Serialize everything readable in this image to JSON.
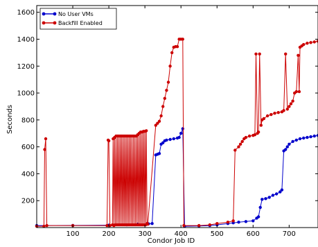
{
  "chart_data": {
    "type": "line",
    "title": "",
    "xlabel": "Condor Job ID",
    "ylabel": "Seconds",
    "xlim": [
      0,
      780
    ],
    "ylim": [
      0,
      1650
    ],
    "x_ticks": [
      100,
      200,
      300,
      400,
      500,
      600,
      700
    ],
    "y_ticks": [
      200,
      400,
      600,
      800,
      1000,
      1200,
      1400,
      1600
    ],
    "grid": false,
    "legend_position": "top-left",
    "series": [
      {
        "name": "No User VMs",
        "color": "#0000cc",
        "points": [
          [
            0,
            15
          ],
          [
            100,
            16
          ],
          [
            200,
            18
          ],
          [
            250,
            20
          ],
          [
            280,
            25
          ],
          [
            310,
            28
          ],
          [
            320,
            30
          ],
          [
            330,
            540
          ],
          [
            335,
            545
          ],
          [
            340,
            550
          ],
          [
            345,
            620
          ],
          [
            350,
            630
          ],
          [
            355,
            645
          ],
          [
            360,
            650
          ],
          [
            370,
            655
          ],
          [
            380,
            660
          ],
          [
            390,
            665
          ],
          [
            395,
            670
          ],
          [
            400,
            700
          ],
          [
            405,
            735
          ],
          [
            410,
            10
          ],
          [
            450,
            12
          ],
          [
            480,
            15
          ],
          [
            500,
            20
          ],
          [
            530,
            30
          ],
          [
            545,
            35
          ],
          [
            560,
            40
          ],
          [
            580,
            45
          ],
          [
            600,
            50
          ],
          [
            610,
            70
          ],
          [
            615,
            80
          ],
          [
            620,
            150
          ],
          [
            625,
            210
          ],
          [
            635,
            215
          ],
          [
            645,
            225
          ],
          [
            655,
            240
          ],
          [
            665,
            250
          ],
          [
            675,
            265
          ],
          [
            680,
            280
          ],
          [
            685,
            570
          ],
          [
            690,
            580
          ],
          [
            695,
            600
          ],
          [
            700,
            620
          ],
          [
            710,
            640
          ],
          [
            720,
            650
          ],
          [
            730,
            660
          ],
          [
            740,
            665
          ],
          [
            750,
            670
          ],
          [
            760,
            675
          ],
          [
            770,
            680
          ],
          [
            780,
            685
          ]
        ]
      },
      {
        "name": "Backfill Enabled",
        "color": "#cc0000",
        "points": [
          [
            0,
            10
          ],
          [
            20,
            10
          ],
          [
            22,
            580
          ],
          [
            25,
            660
          ],
          [
            28,
            15
          ],
          [
            100,
            15
          ],
          [
            195,
            15
          ],
          [
            198,
            650
          ],
          [
            200,
            645
          ],
          [
            203,
            15
          ],
          [
            210,
            20
          ],
          [
            212,
            660
          ],
          [
            214,
            15
          ],
          [
            216,
            670
          ],
          [
            218,
            20
          ],
          [
            220,
            680
          ],
          [
            222,
            20
          ],
          [
            224,
            680
          ],
          [
            226,
            20
          ],
          [
            228,
            680
          ],
          [
            230,
            20
          ],
          [
            232,
            680
          ],
          [
            234,
            20
          ],
          [
            236,
            680
          ],
          [
            238,
            20
          ],
          [
            240,
            680
          ],
          [
            242,
            20
          ],
          [
            244,
            680
          ],
          [
            246,
            20
          ],
          [
            248,
            680
          ],
          [
            250,
            20
          ],
          [
            252,
            680
          ],
          [
            254,
            20
          ],
          [
            256,
            680
          ],
          [
            258,
            20
          ],
          [
            260,
            680
          ],
          [
            262,
            20
          ],
          [
            264,
            680
          ],
          [
            266,
            20
          ],
          [
            268,
            680
          ],
          [
            270,
            20
          ],
          [
            272,
            680
          ],
          [
            274,
            20
          ],
          [
            276,
            680
          ],
          [
            278,
            20
          ],
          [
            280,
            690
          ],
          [
            282,
            20
          ],
          [
            284,
            700
          ],
          [
            286,
            20
          ],
          [
            288,
            710
          ],
          [
            290,
            20
          ],
          [
            292,
            710
          ],
          [
            294,
            20
          ],
          [
            296,
            715
          ],
          [
            298,
            20
          ],
          [
            300,
            715
          ],
          [
            302,
            20
          ],
          [
            304,
            720
          ],
          [
            306,
            30
          ],
          [
            308,
            25
          ],
          [
            330,
            760
          ],
          [
            335,
            775
          ],
          [
            340,
            790
          ],
          [
            345,
            830
          ],
          [
            350,
            900
          ],
          [
            355,
            960
          ],
          [
            360,
            1020
          ],
          [
            365,
            1080
          ],
          [
            370,
            1200
          ],
          [
            375,
            1300
          ],
          [
            380,
            1340
          ],
          [
            385,
            1345
          ],
          [
            390,
            1345
          ],
          [
            395,
            1400
          ],
          [
            400,
            1400
          ],
          [
            405,
            1400
          ],
          [
            408,
            15
          ],
          [
            450,
            15
          ],
          [
            480,
            20
          ],
          [
            500,
            30
          ],
          [
            530,
            40
          ],
          [
            545,
            50
          ],
          [
            550,
            575
          ],
          [
            560,
            600
          ],
          [
            565,
            620
          ],
          [
            570,
            640
          ],
          [
            575,
            660
          ],
          [
            580,
            670
          ],
          [
            590,
            680
          ],
          [
            600,
            685
          ],
          [
            605,
            690
          ],
          [
            608,
            1290
          ],
          [
            612,
            700
          ],
          [
            615,
            710
          ],
          [
            618,
            1290
          ],
          [
            622,
            760
          ],
          [
            625,
            800
          ],
          [
            630,
            810
          ],
          [
            640,
            830
          ],
          [
            650,
            840
          ],
          [
            660,
            850
          ],
          [
            670,
            855
          ],
          [
            680,
            860
          ],
          [
            685,
            870
          ],
          [
            690,
            1290
          ],
          [
            695,
            880
          ],
          [
            700,
            900
          ],
          [
            705,
            920
          ],
          [
            710,
            940
          ],
          [
            715,
            1000
          ],
          [
            720,
            1010
          ],
          [
            725,
            1280
          ],
          [
            728,
            1010
          ],
          [
            730,
            1340
          ],
          [
            735,
            1350
          ],
          [
            740,
            1360
          ],
          [
            750,
            1370
          ],
          [
            760,
            1375
          ],
          [
            770,
            1380
          ],
          [
            780,
            1385
          ]
        ]
      }
    ]
  }
}
